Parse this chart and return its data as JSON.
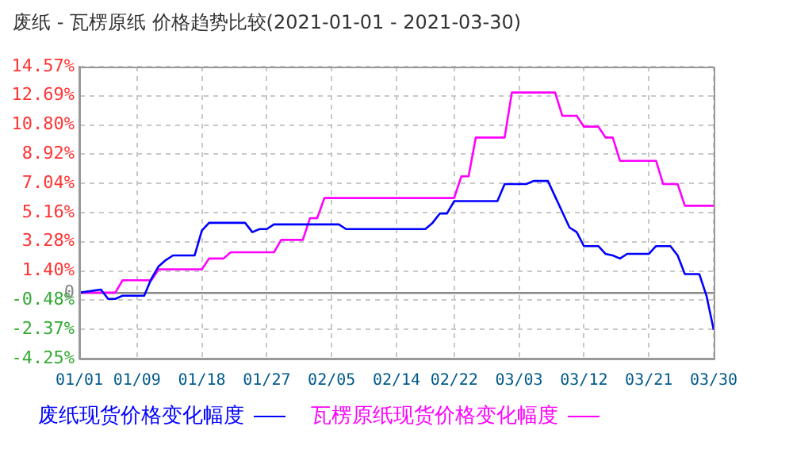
{
  "chart_data": {
    "type": "line",
    "title": "废纸 - 瓦楞原纸 价格趋势比较(2021-01-01 - 2021-03-30)",
    "legend": "bottom",
    "grid": true,
    "marker": "none",
    "line_style": "solid",
    "xlim": [
      "2021-01-01",
      "2021-03-30"
    ],
    "xticks": [
      {
        "value": "2021-01-01",
        "label": "01/01"
      },
      {
        "value": "2021-01-09",
        "label": "01/09"
      },
      {
        "value": "2021-01-18",
        "label": "01/18"
      },
      {
        "value": "2021-01-27",
        "label": "01/27"
      },
      {
        "value": "2021-02-05",
        "label": "02/05"
      },
      {
        "value": "2021-02-14",
        "label": "02/14"
      },
      {
        "value": "2021-02-22",
        "label": "02/22"
      },
      {
        "value": "2021-03-03",
        "label": "03/03"
      },
      {
        "value": "2021-03-12",
        "label": "03/12"
      },
      {
        "value": "2021-03-21",
        "label": "03/21"
      },
      {
        "value": "2021-03-30",
        "label": "03/30"
      }
    ],
    "ylim": [
      -4.25,
      14.57
    ],
    "yticks": [
      {
        "value": -4.25,
        "label": "-4.25%"
      },
      {
        "value": -2.37,
        "label": "-2.37%"
      },
      {
        "value": -0.48,
        "label": "-0.48%"
      },
      {
        "value": 0,
        "label": "0"
      },
      {
        "value": 1.4,
        "label": "1.40%"
      },
      {
        "value": 3.28,
        "label": "3.28%"
      },
      {
        "value": 5.16,
        "label": "5.16%"
      },
      {
        "value": 7.04,
        "label": "7.04%"
      },
      {
        "value": 8.92,
        "label": "8.92%"
      },
      {
        "value": 10.8,
        "label": "10.80%"
      },
      {
        "value": 12.69,
        "label": "12.69%"
      },
      {
        "value": 14.57,
        "label": "14.57%"
      }
    ],
    "series": [
      {
        "name": "废纸现货价格变化幅度",
        "color": "#0000ff",
        "x": [
          "2021-01-01",
          "2021-01-04",
          "2021-01-05",
          "2021-01-06",
          "2021-01-07",
          "2021-01-10",
          "2021-01-11",
          "2021-01-12",
          "2021-01-13",
          "2021-01-14",
          "2021-01-17",
          "2021-01-18",
          "2021-01-19",
          "2021-01-24",
          "2021-01-25",
          "2021-01-26",
          "2021-01-27",
          "2021-01-28",
          "2021-02-06",
          "2021-02-07",
          "2021-02-18",
          "2021-02-19",
          "2021-02-20",
          "2021-02-21",
          "2021-02-22",
          "2021-02-28",
          "2021-03-01",
          "2021-03-04",
          "2021-03-05",
          "2021-03-07",
          "2021-03-08",
          "2021-03-10",
          "2021-03-11",
          "2021-03-12",
          "2021-03-14",
          "2021-03-15",
          "2021-03-16",
          "2021-03-17",
          "2021-03-18",
          "2021-03-21",
          "2021-03-22",
          "2021-03-24",
          "2021-03-25",
          "2021-03-26",
          "2021-03-28",
          "2021-03-29",
          "2021-03-30"
        ],
        "values": [
          0,
          0.2,
          -0.4,
          -0.4,
          -0.2,
          -0.2,
          0.9,
          1.7,
          2.1,
          2.4,
          2.4,
          4.0,
          4.5,
          4.5,
          3.9,
          4.1,
          4.1,
          4.4,
          4.4,
          4.1,
          4.1,
          4.5,
          5.1,
          5.1,
          5.9,
          5.9,
          7.0,
          7.0,
          7.2,
          7.2,
          6.2,
          4.2,
          3.9,
          3.0,
          3.0,
          2.5,
          2.4,
          2.2,
          2.5,
          2.5,
          3.0,
          3.0,
          2.4,
          1.2,
          1.2,
          -0.2,
          -2.4
        ]
      },
      {
        "name": "瓦楞原纸现货价格变化幅度",
        "color": "#ff00ff",
        "x": [
          "2021-01-01",
          "2021-01-06",
          "2021-01-07",
          "2021-01-11",
          "2021-01-12",
          "2021-01-18",
          "2021-01-19",
          "2021-01-21",
          "2021-01-22",
          "2021-01-28",
          "2021-01-29",
          "2021-02-01",
          "2021-02-02",
          "2021-02-03",
          "2021-02-04",
          "2021-02-22",
          "2021-02-23",
          "2021-02-24",
          "2021-02-25",
          "2021-03-01",
          "2021-03-02",
          "2021-03-08",
          "2021-03-09",
          "2021-03-11",
          "2021-03-12",
          "2021-03-14",
          "2021-03-15",
          "2021-03-16",
          "2021-03-17",
          "2021-03-22",
          "2021-03-23",
          "2021-03-25",
          "2021-03-26",
          "2021-03-30"
        ],
        "values": [
          0,
          0,
          0.8,
          0.8,
          1.5,
          1.5,
          2.2,
          2.2,
          2.6,
          2.6,
          3.4,
          3.4,
          4.8,
          4.8,
          6.1,
          6.1,
          7.5,
          7.5,
          10.0,
          10.0,
          12.9,
          12.9,
          11.4,
          11.4,
          10.7,
          10.7,
          10.0,
          10.0,
          8.5,
          8.5,
          7.0,
          7.0,
          5.6,
          5.6
        ]
      }
    ]
  }
}
